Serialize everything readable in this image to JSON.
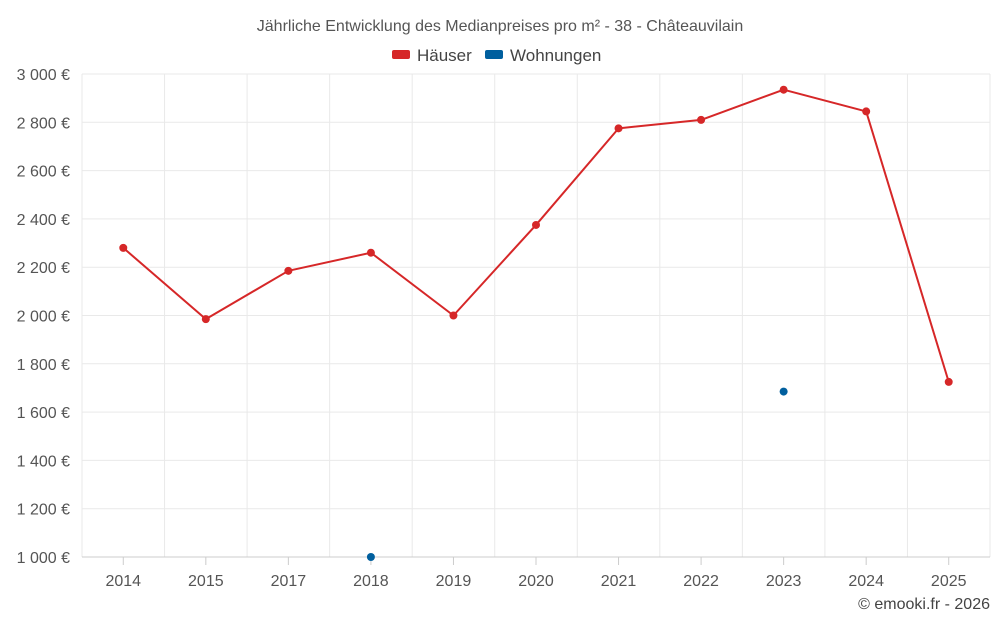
{
  "chart_data": {
    "type": "line",
    "title": "Jährliche Entwicklung des Medianpreises pro m² - 38 - Châteauvilain",
    "categories": [
      "2014",
      "2015",
      "2017",
      "2018",
      "2019",
      "2020",
      "2021",
      "2022",
      "2023",
      "2024",
      "2025"
    ],
    "series": [
      {
        "name": "Häuser",
        "color": "#d62728",
        "values": [
          2280,
          1985,
          2185,
          2260,
          2000,
          2375,
          2775,
          2810,
          2935,
          2845,
          1725
        ]
      },
      {
        "name": "Wohnungen",
        "color": "#005f9e",
        "values": [
          null,
          null,
          null,
          1000,
          null,
          null,
          null,
          null,
          1685,
          null,
          null
        ]
      }
    ],
    "ylim": [
      1000,
      3000
    ],
    "yticks": [
      1000,
      1200,
      1400,
      1600,
      1800,
      2000,
      2200,
      2400,
      2600,
      2800,
      3000
    ],
    "ytick_labels": [
      "1 000 €",
      "1 200 €",
      "1 400 €",
      "1 600 €",
      "1 800 €",
      "2 000 €",
      "2 200 €",
      "2 400 €",
      "2 600 €",
      "2 800 €",
      "3 000 €"
    ],
    "xlabel": "",
    "ylabel": "",
    "grid": true,
    "legend": "top-center"
  },
  "credit": "© emooki.fr - 2026"
}
